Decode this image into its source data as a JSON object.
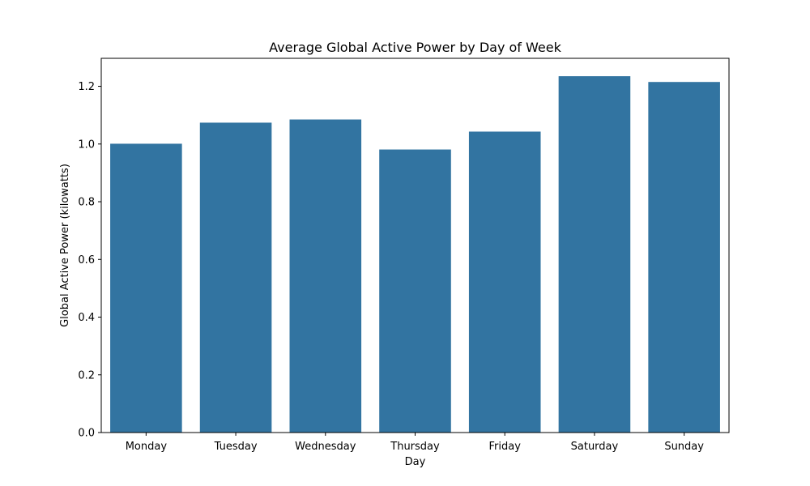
{
  "chart_data": {
    "type": "bar",
    "title": "Average Global Active Power by Day of Week",
    "xlabel": "Day",
    "ylabel": "Global Active Power (kilowatts)",
    "categories": [
      "Monday",
      "Tuesday",
      "Wednesday",
      "Thursday",
      "Friday",
      "Saturday",
      "Sunday"
    ],
    "values": [
      1.001,
      1.074,
      1.085,
      0.981,
      1.043,
      1.235,
      1.215
    ],
    "ylim": [
      0,
      1.297
    ],
    "yticks": [
      "0.0",
      "0.2",
      "0.4",
      "0.6",
      "0.8",
      "1.0",
      "1.2"
    ],
    "bar_color": "#3274a1",
    "grid": false,
    "legend": "none"
  }
}
